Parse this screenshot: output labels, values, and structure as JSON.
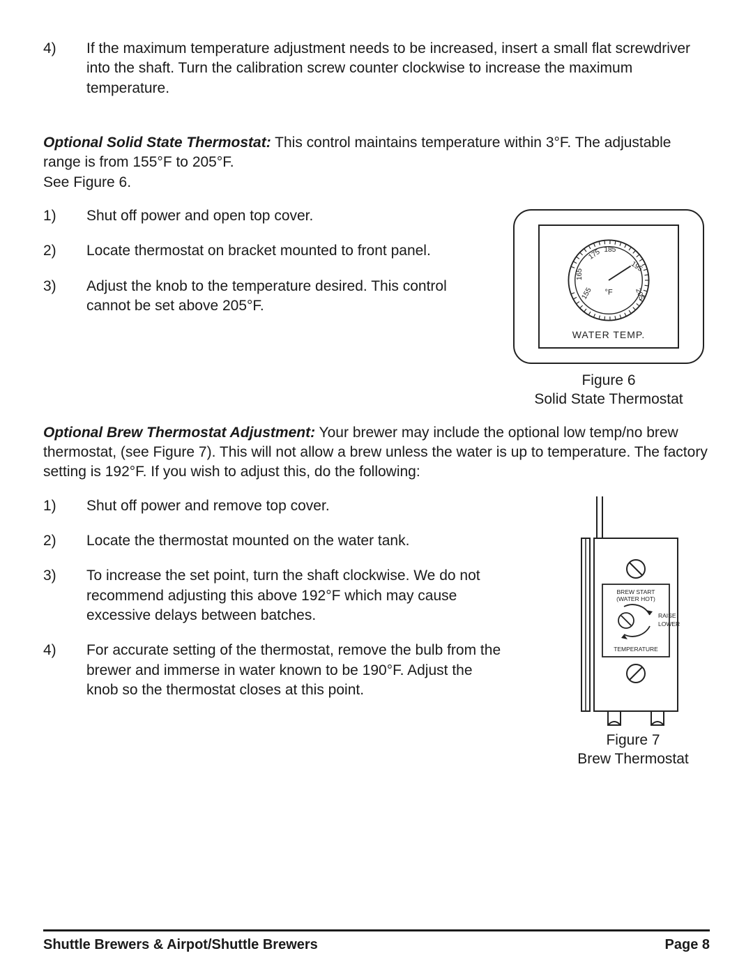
{
  "top_item": {
    "num": "4)",
    "text": "If the maximum temperature adjustment needs to be increased, insert a small flat screwdriver into the shaft.  Turn the calibration screw counter clockwise to increase the maximum temperature."
  },
  "section1": {
    "heading": "Optional Solid State Thermostat:",
    "intro": "  This control maintains temperature within 3°F.  The adjustable range is from 155°F to 205°F.",
    "see": "See Figure 6.",
    "items": [
      {
        "num": "1)",
        "text": "Shut off power and open top cover."
      },
      {
        "num": "2)",
        "text": "Locate thermostat on bracket mounted to front panel."
      },
      {
        "num": "3)",
        "text": "Adjust the knob to the temperature desired.  This control cannot be set above 205°F."
      }
    ],
    "figure": {
      "dial_label_top": "°F",
      "dial_label_bottom": "WATER TEMP.",
      "ticks": [
        "155",
        "165",
        "175",
        "185",
        "195",
        "205"
      ],
      "caption1": "Figure 6",
      "caption2": "Solid State Thermostat"
    }
  },
  "section2": {
    "heading": "Optional Brew Thermostat Adjustment:",
    "intro": "  Your brewer may include the optional low temp/no brew thermostat, (see Figure 7).  This will not allow a brew unless the water is up to temperature.  The factory setting is 192°F.  If you wish to adjust this, do the following:",
    "items": [
      {
        "num": "1)",
        "text": "Shut off power and remove top cover."
      },
      {
        "num": "2)",
        "text": "Locate the thermostat mounted on the water tank."
      },
      {
        "num": "3)",
        "text": "To increase the set point, turn the shaft clockwise.  We do not recommend adjusting this above 192°F which may cause excessive delays between batches."
      },
      {
        "num": "4)",
        "text": "For accurate setting of the thermostat, remove the bulb from the brewer and immerse in water known to be 190°F.  Adjust the knob so the thermostat closes at this point."
      }
    ],
    "figure": {
      "label1a": "BREW START",
      "label1b": "(WATER HOT)",
      "label2a": "RAISE",
      "label2b": "LOWER",
      "label3": "TEMPERATURE",
      "caption1": "Figure 7",
      "caption2": "Brew Thermostat"
    }
  },
  "footer": {
    "left": "Shuttle Brewers & Airpot/Shuttle Brewers",
    "right": "Page 8"
  },
  "colors": {
    "text": "#1a1a1a",
    "line": "#222222",
    "bg": "#ffffff"
  }
}
